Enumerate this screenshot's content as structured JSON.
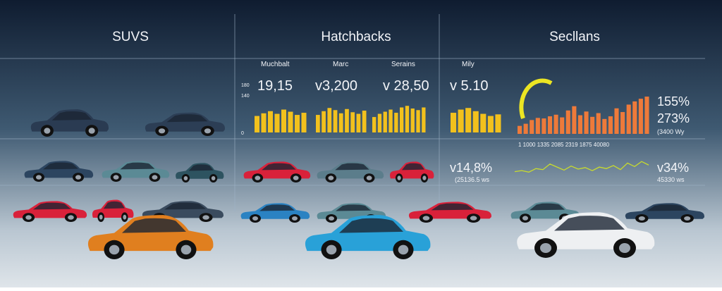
{
  "columns": [
    "SUVS",
    "Hatchbacks",
    "Secllans"
  ],
  "metrics": [
    {
      "label": "Muchbalt",
      "value": "19,15"
    },
    {
      "label": "Marc",
      "value": "v3,200"
    },
    {
      "label": "Serains",
      "value": "v 28,50"
    },
    {
      "label": "Mily",
      "value": "v 5.10"
    }
  ],
  "axis_ticks": [
    180,
    140,
    0
  ],
  "bar_groups": [
    [
      62,
      72,
      80,
      70,
      86,
      78,
      66,
      74
    ],
    [
      66,
      80,
      92,
      84,
      72,
      88,
      76,
      70,
      82
    ],
    [
      58,
      70,
      78,
      86,
      74,
      94,
      100,
      90,
      84,
      94
    ],
    [
      74,
      86,
      92,
      80,
      70,
      62,
      68
    ]
  ],
  "orange_bars": [
    30,
    38,
    52,
    60,
    58,
    66,
    72,
    62,
    88,
    104,
    70,
    84,
    64,
    78,
    56,
    66,
    96,
    82,
    110,
    122,
    132,
    140
  ],
  "timeline": "1 1000 1335 2085 2319 1875 40080",
  "line": [
    40,
    44,
    38,
    52,
    48,
    70,
    58,
    46,
    62,
    50,
    56,
    44,
    58,
    52,
    64,
    48,
    74,
    60,
    80,
    66
  ],
  "stats_right": [
    "155%",
    "273%",
    "(3400 Wy"
  ],
  "stat_mid": {
    "value": "v14,8%",
    "sub": "(25136.5 ws"
  },
  "stat_low": {
    "value": "v34%",
    "sub": "45330 ws"
  }
}
